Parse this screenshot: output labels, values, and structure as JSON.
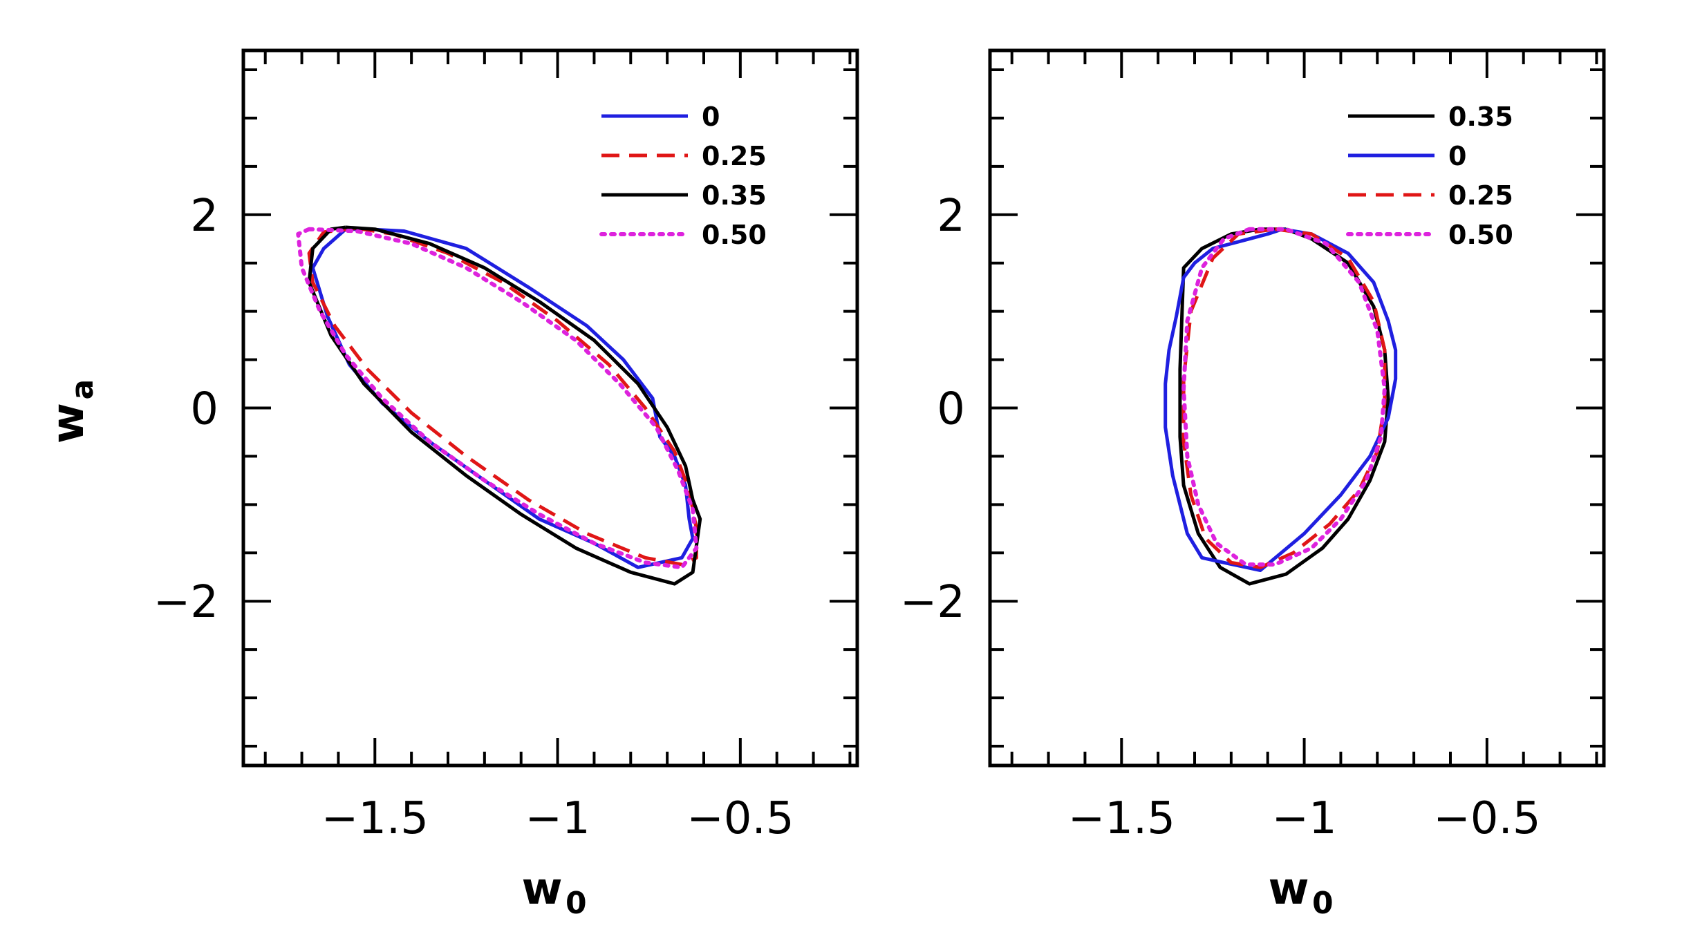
{
  "chart_data": [
    {
      "type": "line",
      "panel": "left",
      "xlabel": "w",
      "xlabel_sub": "0",
      "ylabel": "w",
      "ylabel_sub": "a",
      "xlim": [
        -1.86,
        -0.18
      ],
      "ylim": [
        -3.7,
        3.7
      ],
      "xticks": [
        -1.5,
        -1,
        -0.5
      ],
      "xtick_labels": [
        "−1.5",
        "−1",
        "−0.5"
      ],
      "yticks": [
        -2,
        0,
        2
      ],
      "ytick_labels": [
        "−2",
        "0",
        "2"
      ],
      "legend_position": "top-right",
      "series": [
        {
          "name": "0",
          "color": "#1f1fe0",
          "style": "solid",
          "x": [
            -1.52,
            -1.42,
            -1.25,
            -1.08,
            -0.92,
            -0.82,
            -0.74,
            -0.72,
            -0.68,
            -0.65,
            -0.64,
            -0.63,
            -0.66,
            -0.78,
            -0.9,
            -1.05,
            -1.2,
            -1.35,
            -1.48,
            -1.57,
            -1.63,
            -1.67,
            -1.64,
            -1.58,
            -1.52
          ],
          "y": [
            1.85,
            1.83,
            1.65,
            1.25,
            0.85,
            0.5,
            0.1,
            -0.3,
            -0.5,
            -0.8,
            -1.15,
            -1.35,
            -1.55,
            -1.65,
            -1.4,
            -1.15,
            -0.75,
            -0.35,
            0.05,
            0.45,
            0.95,
            1.45,
            1.65,
            1.85,
            1.85
          ],
          "label": "0"
        },
        {
          "name": "0.25",
          "color": "#e01616",
          "style": "dashed",
          "x": [
            -1.55,
            -1.45,
            -1.3,
            -1.15,
            -1.0,
            -0.86,
            -0.76,
            -0.68,
            -0.64,
            -0.62,
            -0.62,
            -0.66,
            -0.76,
            -0.92,
            -1.08,
            -1.25,
            -1.4,
            -1.52,
            -1.61,
            -1.67,
            -1.68,
            -1.64,
            -1.55
          ],
          "y": [
            1.86,
            1.8,
            1.6,
            1.3,
            0.9,
            0.45,
            0.0,
            -0.45,
            -0.85,
            -1.25,
            -1.55,
            -1.62,
            -1.55,
            -1.3,
            -0.95,
            -0.5,
            -0.05,
            0.4,
            0.85,
            1.3,
            1.6,
            1.82,
            1.86
          ],
          "label": "0.25"
        },
        {
          "name": "0.35",
          "color": "#000000",
          "style": "solid",
          "x": [
            -1.58,
            -1.5,
            -1.35,
            -1.2,
            -1.05,
            -0.9,
            -0.78,
            -0.7,
            -0.65,
            -0.63,
            -0.61,
            -0.63,
            -0.68,
            -0.8,
            -0.95,
            -1.1,
            -1.25,
            -1.4,
            -1.53,
            -1.62,
            -1.68,
            -1.67,
            -1.62,
            -1.58
          ],
          "y": [
            1.87,
            1.85,
            1.7,
            1.45,
            1.1,
            0.7,
            0.25,
            -0.2,
            -0.6,
            -0.95,
            -1.15,
            -1.7,
            -1.82,
            -1.7,
            -1.45,
            -1.1,
            -0.7,
            -0.25,
            0.25,
            0.75,
            1.3,
            1.65,
            1.85,
            1.87
          ],
          "label": "0.35"
        },
        {
          "name": "0.50",
          "color": "#dd22dd",
          "style": "dotted",
          "x": [
            -1.68,
            -1.55,
            -1.4,
            -1.25,
            -1.1,
            -0.95,
            -0.83,
            -0.73,
            -0.67,
            -0.63,
            -0.62,
            -0.66,
            -0.76,
            -0.9,
            -1.05,
            -1.2,
            -1.35,
            -1.48,
            -1.58,
            -1.65,
            -1.7,
            -1.71,
            -1.68
          ],
          "y": [
            1.85,
            1.83,
            1.7,
            1.45,
            1.1,
            0.7,
            0.25,
            -0.2,
            -0.65,
            -1.05,
            -1.45,
            -1.65,
            -1.6,
            -1.4,
            -1.1,
            -0.75,
            -0.35,
            0.1,
            0.55,
            1.0,
            1.45,
            1.8,
            1.85
          ],
          "label": "0.50"
        }
      ]
    },
    {
      "type": "line",
      "panel": "right",
      "xlabel": "w",
      "xlabel_sub": "0",
      "xlim": [
        -1.86,
        -0.18
      ],
      "ylim": [
        -3.7,
        3.7
      ],
      "xticks": [
        -1.5,
        -1,
        -0.5
      ],
      "xtick_labels": [
        "−1.5",
        "−1",
        "−0.5"
      ],
      "yticks": [
        -2,
        0,
        2
      ],
      "ytick_labels": [
        "−2",
        "0",
        "2"
      ],
      "legend_position": "top-right",
      "series": [
        {
          "name": "0.35",
          "color": "#000000",
          "style": "solid",
          "x": [
            -1.05,
            -0.98,
            -0.88,
            -0.81,
            -0.78,
            -0.77,
            -0.78,
            -0.82,
            -0.88,
            -0.95,
            -1.05,
            -1.15,
            -1.23,
            -1.29,
            -1.33,
            -1.34,
            -1.34,
            -1.33,
            -1.28,
            -1.2,
            -1.12,
            -1.05
          ],
          "y": [
            1.85,
            1.75,
            1.5,
            1.05,
            0.6,
            0.1,
            -0.35,
            -0.75,
            -1.15,
            -1.45,
            -1.72,
            -1.82,
            -1.65,
            -1.3,
            -0.8,
            -0.3,
            0.4,
            1.45,
            1.65,
            1.8,
            1.85,
            1.85
          ],
          "label": "0.35"
        },
        {
          "name": "0",
          "color": "#1f1fe0",
          "style": "solid",
          "x": [
            -1.06,
            -0.98,
            -0.88,
            -0.81,
            -0.77,
            -0.75,
            -0.75,
            -0.77,
            -0.82,
            -0.9,
            -1.0,
            -1.12,
            -1.22,
            -1.28,
            -1.32,
            -1.36,
            -1.38,
            -1.38,
            -1.37,
            -1.35,
            -1.33,
            -1.3,
            -1.25,
            -1.18,
            -1.1,
            -1.06
          ],
          "y": [
            1.85,
            1.8,
            1.6,
            1.3,
            0.9,
            0.6,
            0.3,
            -0.1,
            -0.5,
            -0.9,
            -1.3,
            -1.68,
            -1.6,
            -1.55,
            -1.3,
            -0.7,
            -0.2,
            0.25,
            0.6,
            0.95,
            1.35,
            1.5,
            1.65,
            1.72,
            1.8,
            1.85
          ],
          "label": "0"
        },
        {
          "name": "0.25",
          "color": "#e01616",
          "style": "dashed",
          "x": [
            -1.08,
            -0.98,
            -0.88,
            -0.81,
            -0.78,
            -0.78,
            -0.8,
            -0.85,
            -0.93,
            -1.03,
            -1.12,
            -1.2,
            -1.27,
            -1.31,
            -1.33,
            -1.33,
            -1.31,
            -1.25,
            -1.18,
            -1.08
          ],
          "y": [
            1.85,
            1.8,
            1.55,
            1.1,
            0.6,
            0.05,
            -0.45,
            -0.85,
            -1.2,
            -1.5,
            -1.65,
            -1.6,
            -1.35,
            -0.9,
            -0.35,
            0.3,
            1.0,
            1.55,
            1.8,
            1.85
          ],
          "label": "0.25"
        },
        {
          "name": "0.50",
          "color": "#dd22dd",
          "style": "dotted",
          "x": [
            -1.15,
            -1.05,
            -0.94,
            -0.85,
            -0.8,
            -0.78,
            -0.79,
            -0.83,
            -0.9,
            -0.98,
            -1.08,
            -1.16,
            -1.24,
            -1.29,
            -1.32,
            -1.33,
            -1.32,
            -1.28,
            -1.22,
            -1.15
          ],
          "y": [
            1.85,
            1.85,
            1.7,
            1.3,
            0.8,
            0.2,
            -0.3,
            -0.75,
            -1.15,
            -1.45,
            -1.62,
            -1.62,
            -1.4,
            -1.0,
            -0.5,
            0.2,
            0.9,
            1.45,
            1.75,
            1.85
          ],
          "label": "0.50"
        }
      ]
    }
  ]
}
